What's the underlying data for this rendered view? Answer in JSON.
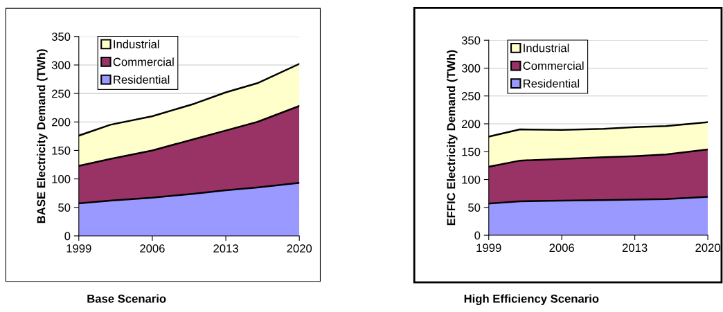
{
  "chart_data": [
    {
      "type": "area",
      "stacked": true,
      "title": "Base Scenario",
      "ylabel": "BASE Electricity Demand (TWh)",
      "x": [
        1999,
        2002,
        2006,
        2010,
        2013,
        2016,
        2020
      ],
      "series": [
        {
          "name": "Residential",
          "color": "#9999ff",
          "values": [
            57,
            62,
            67,
            74,
            80,
            85,
            93
          ]
        },
        {
          "name": "Commercial",
          "color": "#993366",
          "values": [
            66,
            73,
            83,
            96,
            105,
            115,
            135
          ]
        },
        {
          "name": "Industrial",
          "color": "#ffffcc",
          "values": [
            53,
            60,
            60,
            62,
            67,
            68,
            74
          ]
        }
      ],
      "xlim": [
        1999,
        2020
      ],
      "xticks": [
        1999,
        2006,
        2013,
        2020
      ],
      "ylim": [
        0,
        350
      ],
      "yticks": [
        0,
        50,
        100,
        150,
        200,
        250,
        300,
        350
      ],
      "grid": "y",
      "legend": "top left"
    },
    {
      "type": "area",
      "stacked": true,
      "title": "High Efficiency Scenario",
      "ylabel": "EFFIC Electricity Demand (TWh)",
      "x": [
        1999,
        2002,
        2006,
        2010,
        2013,
        2016,
        2020
      ],
      "series": [
        {
          "name": "Residential",
          "color": "#9999ff",
          "values": [
            57,
            61,
            62,
            63,
            64,
            65,
            69
          ]
        },
        {
          "name": "Commercial",
          "color": "#993366",
          "values": [
            66,
            73,
            75,
            77,
            78,
            80,
            85
          ]
        },
        {
          "name": "Industrial",
          "color": "#ffffcc",
          "values": [
            54,
            56,
            52,
            51,
            52,
            51,
            49
          ]
        }
      ],
      "xlim": [
        1999,
        2020
      ],
      "xticks": [
        1999,
        2006,
        2013,
        2020
      ],
      "ylim": [
        0,
        350
      ],
      "yticks": [
        0,
        50,
        100,
        150,
        200,
        250,
        300,
        350
      ],
      "grid": "y",
      "legend": "top left"
    }
  ]
}
